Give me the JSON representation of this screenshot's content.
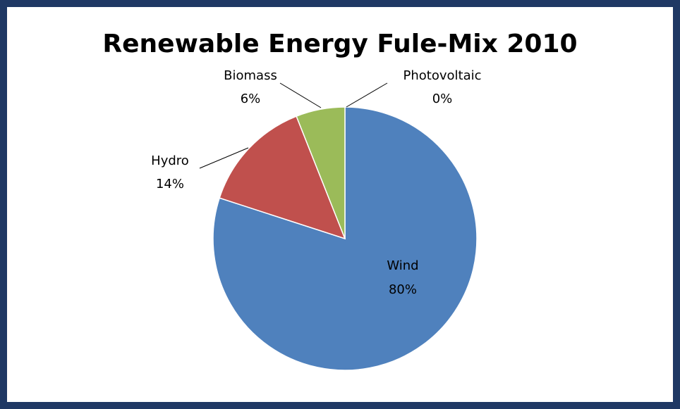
{
  "chart_data": {
    "type": "pie",
    "title": "Renewable Energy Fule-Mix 2010",
    "slices": [
      {
        "label": "Wind",
        "value": 80,
        "value_label": "80%",
        "color": "#4f81bd"
      },
      {
        "label": "Hydro",
        "value": 14,
        "value_label": "14%",
        "color": "#c0504d"
      },
      {
        "label": "Biomass",
        "value": 6,
        "value_label": "6%",
        "color": "#9bbb59"
      },
      {
        "label": "Photovoltaic",
        "value": 0,
        "value_label": "0%",
        "color": "#8064a2"
      }
    ],
    "legend": "none",
    "label_placement": "data labels with category name and percentage"
  },
  "colors": {
    "frame_border": "#1f3864",
    "background": "#ffffff",
    "leader_line": "#000000"
  }
}
